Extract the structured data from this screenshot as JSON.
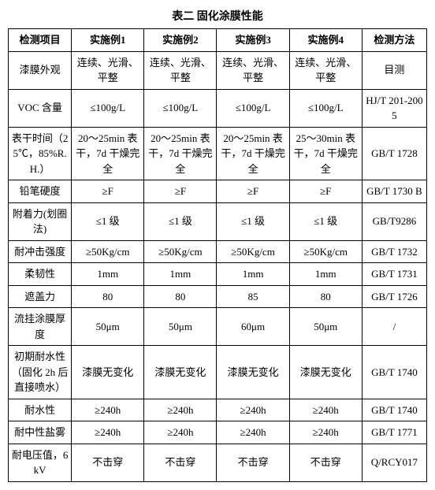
{
  "title": "表二 固化涂膜性能",
  "columns": [
    "检测项目",
    "实施例1",
    "实施例2",
    "实施例3",
    "实施例4",
    "检测方法"
  ],
  "rows": [
    [
      "漆膜外观",
      "连续、光滑、平整",
      "连续、光滑、平整",
      "连续、光滑、平整",
      "连续、光滑、平整",
      "目测"
    ],
    [
      "VOC 含量",
      "≤100g/L",
      "≤100g/L",
      "≤100g/L",
      "≤100g/L",
      "HJ/T 201-2005"
    ],
    [
      "表干时间（25℃，85%R.H.）",
      "20～25min 表干，7d 干燥完全",
      "20～25min 表干，7d 干燥完全",
      "20～25min 表干，7d 干燥完全",
      "25～30min 表干，7d 干燥完全",
      "GB/T 1728"
    ],
    [
      "铅笔硬度",
      "≥F",
      "≥F",
      "≥F",
      "≥F",
      "GB/T 1730 B"
    ],
    [
      "附着力(划圈法)",
      "≤1 级",
      "≤1 级",
      "≤1 级",
      "≤1 级",
      "GB/T9286"
    ],
    [
      "耐冲击强度",
      "≥50Kg/cm",
      "≥50Kg/cm",
      "≥50Kg/cm",
      "≥50Kg/cm",
      "GB/T 1732"
    ],
    [
      "柔韧性",
      "1mm",
      "1mm",
      "1mm",
      "1mm",
      "GB/T 1731"
    ],
    [
      "遮盖力",
      "80",
      "80",
      "85",
      "80",
      "GB/T 1726"
    ],
    [
      "流挂涂膜厚度",
      "50μm",
      "50μm",
      "60μm",
      "50μm",
      "/"
    ],
    [
      "初期耐水性（固化 2h 后直接喷水）",
      "漆膜无变化",
      "漆膜无变化",
      "漆膜无变化",
      "漆膜无变化",
      "GB/T 1740"
    ],
    [
      "耐水性",
      "≥240h",
      "≥240h",
      "≥240h",
      "≥240h",
      "GB/T 1740"
    ],
    [
      "耐中性盐雾",
      "≥240h",
      "≥240h",
      "≥240h",
      "≥240h",
      "GB/T 1771"
    ],
    [
      "耐电压值，6kV",
      "不击穿",
      "不击穿",
      "不击穿",
      "不击穿",
      "Q/RCY017"
    ]
  ]
}
